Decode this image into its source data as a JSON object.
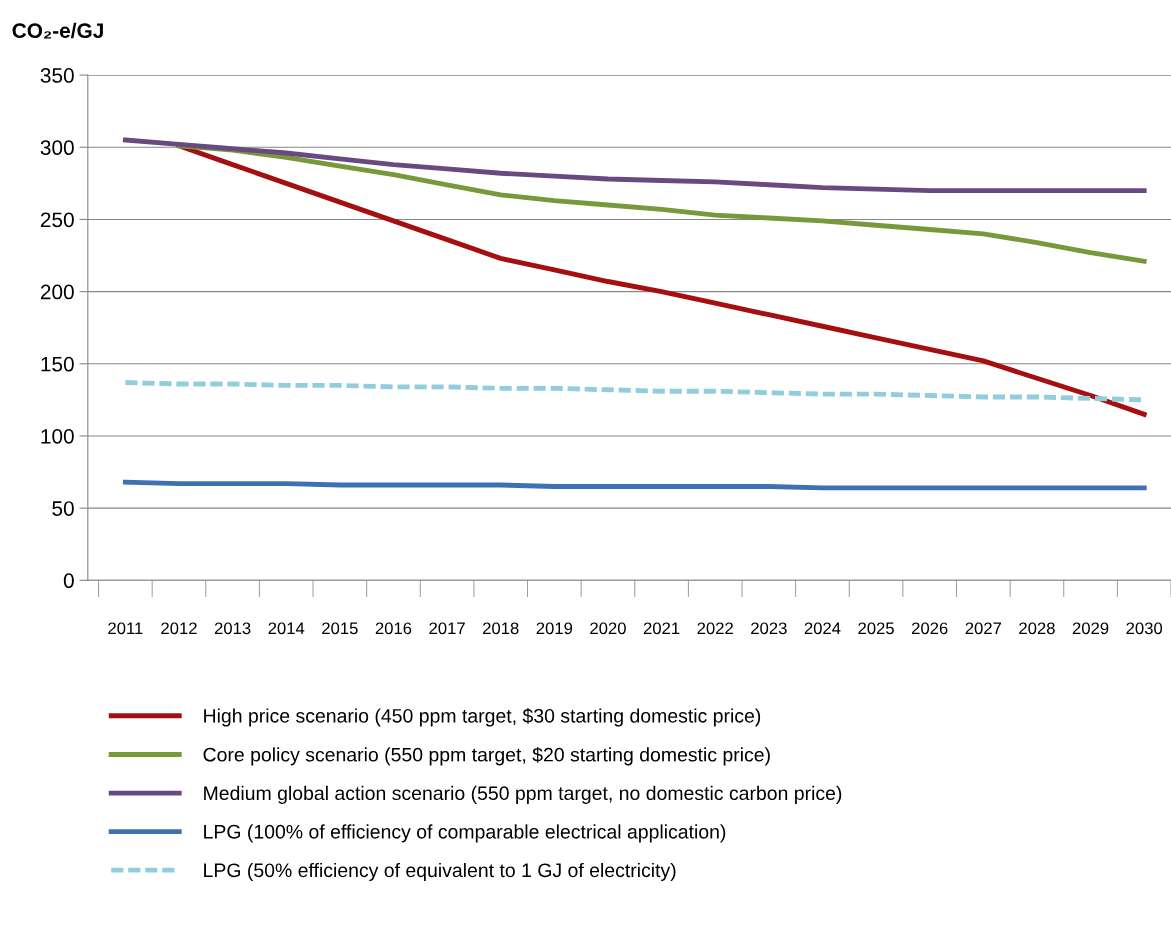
{
  "chart_data": {
    "type": "line",
    "ylabel": "CO₂-e/GJ",
    "categories": [
      "2011",
      "2012",
      "2013",
      "2014",
      "2015",
      "2016",
      "2017",
      "2018",
      "2019",
      "2020",
      "2021",
      "2022",
      "2023",
      "2024",
      "2025",
      "2026",
      "2027",
      "2028",
      "2029",
      "2030"
    ],
    "ylim": [
      0,
      350
    ],
    "yticks": [
      0,
      50,
      100,
      150,
      200,
      250,
      300,
      350
    ],
    "grid": "y",
    "legend": "bottom",
    "series": [
      {
        "name": "High price scenario (450 ppm target, $30 starting domestic price)",
        "color": "#a50f0f",
        "line_style": "solid",
        "values": [
          null,
          301,
          288,
          275,
          262,
          249,
          236,
          223,
          215,
          207,
          200,
          192,
          184,
          176,
          168,
          160,
          152,
          140,
          128,
          115
        ]
      },
      {
        "name": "Core policy scenario (550 ppm target, $20 starting domestic price)",
        "color": "#77993a",
        "line_style": "solid",
        "values": [
          null,
          301,
          298,
          293,
          287,
          281,
          274,
          267,
          263,
          260,
          257,
          253,
          251,
          249,
          246,
          243,
          240,
          234,
          227,
          221
        ]
      },
      {
        "name": "Medium global action scenario (550 ppm target, no domestic carbon price)",
        "color": "#684a80",
        "line_style": "solid",
        "values": [
          305,
          302,
          299,
          296,
          292,
          288,
          285,
          282,
          280,
          278,
          277,
          276,
          274,
          272,
          271,
          270,
          270,
          270,
          270,
          270
        ]
      },
      {
        "name": "LPG (100% of efficiency of comparable electrical application)",
        "color": "#3e71b3",
        "line_style": "solid",
        "values": [
          68,
          67,
          67,
          67,
          66,
          66,
          66,
          66,
          65,
          65,
          65,
          65,
          65,
          64,
          64,
          64,
          64,
          64,
          64,
          64
        ]
      },
      {
        "name": "LPG (50% efficiency of equivalent to 1 GJ of electricity)",
        "color": "#92cddd",
        "line_style": "dashed",
        "values": [
          137,
          136,
          136,
          135,
          135,
          134,
          134,
          133,
          133,
          132,
          131,
          131,
          130,
          129,
          129,
          128,
          127,
          127,
          126,
          125
        ]
      }
    ]
  }
}
